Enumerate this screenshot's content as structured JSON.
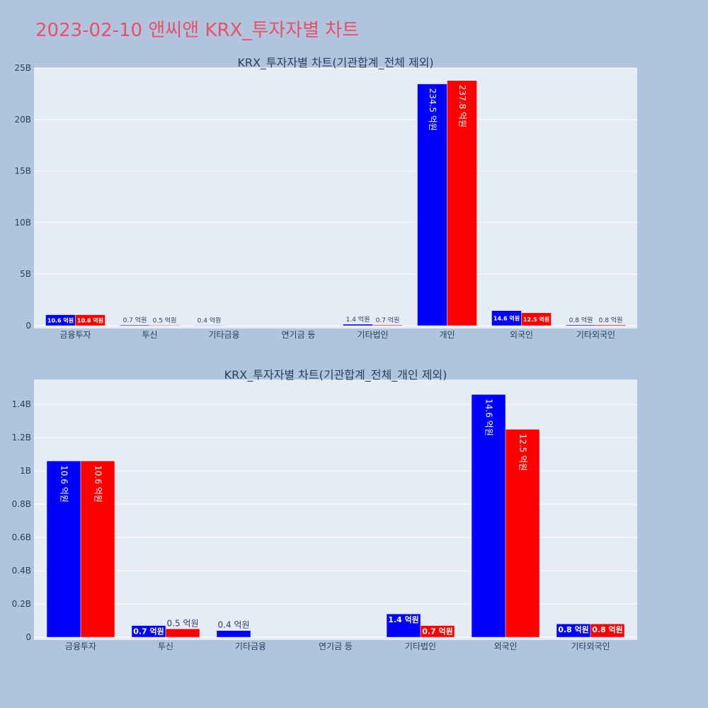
{
  "page": {
    "title": "2023-02-10 앤씨앤 KRX_투자자별 차트",
    "background": "#b0c4de",
    "title_color": "#e8506a"
  },
  "chart_data": [
    {
      "type": "bar",
      "title": "KRX_투자자별 차트(기관합계_전체 제외)",
      "categories": [
        "금융투자",
        "투신",
        "기타금융",
        "연기금 등",
        "기타법인",
        "개인",
        "외국인",
        "기타외국인"
      ],
      "ylim": [
        0,
        25000000000
      ],
      "yticks": [
        0,
        5000000000,
        10000000000,
        15000000000,
        20000000000,
        25000000000
      ],
      "ytick_labels": [
        "0",
        "5B",
        "10B",
        "15B",
        "20B",
        "25B"
      ],
      "grid": true,
      "plot_background": "#e5ecf6",
      "series": [
        {
          "color": "#0000ff",
          "values": [
            1060000000,
            70000000,
            40000000,
            0,
            140000000,
            23450000000,
            1460000000,
            80000000
          ],
          "labels": [
            "10.6 억원",
            "0.7 억원",
            "0.4 억원",
            "",
            "1.4 억원",
            "234.5 억원",
            "14.6 억원",
            "0.8 억원"
          ]
        },
        {
          "color": "#ff0000",
          "values": [
            1060000000,
            50000000,
            0,
            0,
            70000000,
            23780000000,
            1250000000,
            80000000
          ],
          "labels": [
            "10.6 억원",
            "0.5 억원",
            "",
            "",
            "0.7 억원",
            "237.8 억원",
            "12.5 억원",
            "0.8 억원"
          ]
        }
      ]
    },
    {
      "type": "bar",
      "title": "KRX_투자자별 차트(기관합계_전체_개인 제외)",
      "categories": [
        "금융투자",
        "투신",
        "기타금융",
        "연기금 등",
        "기타법인",
        "외국인",
        "기타외국인"
      ],
      "ylim": [
        0,
        1550000000
      ],
      "yticks": [
        0,
        200000000,
        400000000,
        600000000,
        800000000,
        1000000000,
        1200000000,
        1400000000
      ],
      "ytick_labels": [
        "0",
        "0.2B",
        "0.4B",
        "0.6B",
        "0.8B",
        "1B",
        "1.2B",
        "1.4B"
      ],
      "grid": true,
      "plot_background": "#e5ecf6",
      "series": [
        {
          "color": "#0000ff",
          "values": [
            1060000000,
            70000000,
            40000000,
            0,
            140000000,
            1460000000,
            80000000
          ],
          "labels": [
            "10.6 억원",
            "0.7 억원",
            "0.4 억원",
            "",
            "1.4 억원",
            "14.6 억원",
            "0.8 억원"
          ]
        },
        {
          "color": "#ff0000",
          "values": [
            1060000000,
            50000000,
            0,
            0,
            70000000,
            1250000000,
            80000000
          ],
          "labels": [
            "10.6 억원",
            "0.5 억원",
            "",
            "",
            "0.7 억원",
            "12.5 억원",
            "0.8 억원"
          ]
        }
      ]
    }
  ]
}
